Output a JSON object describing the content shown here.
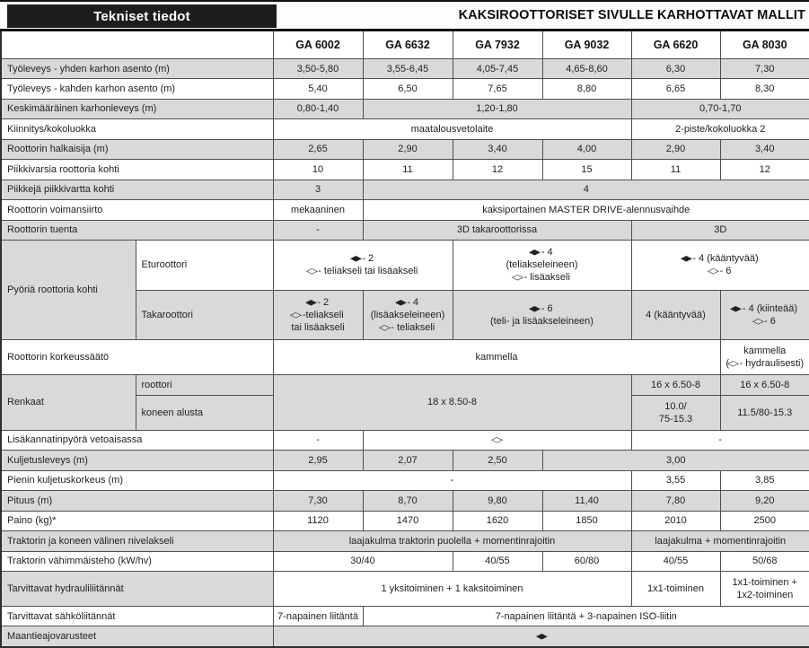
{
  "header": {
    "left_title": "Tekniset tiedot",
    "right_title": "KAKSIROOTTORISET SIVULLE KARHOTTAVAT MALLIT"
  },
  "colors": {
    "row_gray": "#d9d9d9",
    "row_white": "#ffffff",
    "header_box_bg": "#1d1d1d",
    "header_box_text": "#ffffff"
  },
  "legend_icons": {
    "filled_diamond": "◆",
    "outline_diamond": "◇"
  },
  "columns": [
    "GA 6002",
    "GA 6632",
    "GA 7932",
    "GA 9032",
    "GA 6620",
    "GA 8030"
  ],
  "rows": [
    {
      "label": "Työleveys - yhden karhon asento (m)",
      "shade": "g",
      "cells": [
        {
          "text": "3,50-5,80"
        },
        {
          "text": "3,55-6,45"
        },
        {
          "text": "4,05-7,45"
        },
        {
          "text": "4,65-8,60"
        },
        {
          "text": "6,30"
        },
        {
          "text": "7,30"
        }
      ]
    },
    {
      "label": "Työleveys - kahden karhon asento (m)",
      "shade": "w",
      "cells": [
        {
          "text": "5,40"
        },
        {
          "text": "6,50"
        },
        {
          "text": "7,65"
        },
        {
          "text": "8,80"
        },
        {
          "text": "6,65"
        },
        {
          "text": "8,30"
        }
      ]
    },
    {
      "label": "Keskimääräinen karhonleveys (m)",
      "shade": "g",
      "cells": [
        {
          "text": "0,80-1,40"
        },
        {
          "text": "1,20-1,80",
          "span": 3
        },
        {
          "text": "0,70-1,70",
          "span": 2
        }
      ]
    },
    {
      "label": "Kiinnitys/kokoluokka",
      "shade": "w",
      "cells": [
        {
          "text": "maatalousvetolaite",
          "span": 4
        },
        {
          "text": "2-piste/kokoluokka 2",
          "span": 2
        }
      ]
    },
    {
      "label": "Roottorin halkaisija (m)",
      "shade": "g",
      "cells": [
        {
          "text": "2,65"
        },
        {
          "text": "2,90"
        },
        {
          "text": "3,40"
        },
        {
          "text": "4,00"
        },
        {
          "text": "2,90"
        },
        {
          "text": "3,40"
        }
      ]
    },
    {
      "label": "Piikkivarsia roottoria kohti",
      "shade": "w",
      "cells": [
        {
          "text": "10"
        },
        {
          "text": "11"
        },
        {
          "text": "12"
        },
        {
          "text": "15"
        },
        {
          "text": "11"
        },
        {
          "text": "12"
        }
      ]
    },
    {
      "label": "Piikkejä piikkivartta kohti",
      "shade": "g",
      "cells": [
        {
          "text": "3"
        },
        {
          "text": "4",
          "span": 5
        }
      ]
    },
    {
      "label": "Roottorin voimansiirto",
      "shade": "w",
      "cells": [
        {
          "text": "mekaaninen"
        },
        {
          "text": "kaksiportainen MASTER DRIVE-alennusvaihde",
          "span": 5
        }
      ]
    },
    {
      "label": "Roottorin tuenta",
      "shade": "g",
      "cells": [
        {
          "text": "-"
        },
        {
          "text": "3D takaroottorissa",
          "span": 3
        },
        {
          "text": "3D",
          "span": 2
        }
      ]
    },
    {
      "group_label": "Pyöriä roottoria kohti",
      "group_rowspan": 2,
      "sublabel": "Eturoottori",
      "shade": "w",
      "cells": [
        {
          "text": "◆ - 2\n◇ - teliakseli tai lisäakseli",
          "span": 2
        },
        {
          "text": "◆ - 4\n(teliakseleineen)\n◇ - lisäakseli",
          "span": 2
        },
        {
          "text": "◆ - 4 (kääntyvää)\n◇ - 6",
          "span": 2
        }
      ]
    },
    {
      "sublabel": "Takaroottori",
      "in_group": true,
      "shade": "g",
      "cells": [
        {
          "text": "◆ - 2\n◇ -teliakseli\ntai lisäakseli"
        },
        {
          "text": "◆ - 4\n(lisäakseleineen)\n◇ - teliakseli"
        },
        {
          "text": "◆ - 6\n(teli- ja lisäakseleineen)",
          "span": 2
        },
        {
          "text": "4 (kääntyvää)"
        },
        {
          "text": "◆ - 4 (kiinteää)\n◇ - 6"
        }
      ]
    },
    {
      "label": "Roottorin korkeussäätö",
      "shade": "w",
      "cells": [
        {
          "text": "kammella",
          "span": 5
        },
        {
          "text": "kammella\n(◇ - hydraulisesti)"
        }
      ]
    },
    {
      "group_label": "Renkaat",
      "group_rowspan": 2,
      "sublabel": "roottori",
      "shade": "g",
      "cells": [
        {
          "text": "18 x 8.50-8",
          "span": 4,
          "rowspan": 2
        },
        {
          "text": "16 x 6.50-8"
        },
        {
          "text": "16 x 6.50-8"
        }
      ]
    },
    {
      "sublabel": "koneen alusta",
      "in_group": true,
      "shade": "g",
      "cells": [
        {
          "text": "10.0/\n75-15.3"
        },
        {
          "text": "11.5/80-15.3"
        }
      ]
    },
    {
      "label": "Lisäkannatinpyörä vetoaisassa",
      "shade": "w",
      "cells": [
        {
          "text": "-"
        },
        {
          "text": "◇",
          "span": 3
        },
        {
          "text": "-",
          "span": 2
        }
      ]
    },
    {
      "label": "Kuljetusleveys (m)",
      "shade": "g",
      "cells": [
        {
          "text": "2,95"
        },
        {
          "text": "2,07"
        },
        {
          "text": "2,50"
        },
        {
          "text": "3,00",
          "span": 3
        }
      ]
    },
    {
      "label": "Pienin kuljetuskorkeus (m)",
      "shade": "w",
      "cells": [
        {
          "text": "-",
          "span": 4
        },
        {
          "text": "3,55"
        },
        {
          "text": "3,85"
        }
      ]
    },
    {
      "label": "Pituus (m)",
      "shade": "g",
      "cells": [
        {
          "text": "7,30"
        },
        {
          "text": "8,70"
        },
        {
          "text": "9,80"
        },
        {
          "text": "11,40"
        },
        {
          "text": "7,80"
        },
        {
          "text": "9,20"
        }
      ]
    },
    {
      "label": "Paino (kg)*",
      "shade": "w",
      "cells": [
        {
          "text": "1120"
        },
        {
          "text": "1470"
        },
        {
          "text": "1620"
        },
        {
          "text": "1850"
        },
        {
          "text": "2010"
        },
        {
          "text": "2500"
        }
      ]
    },
    {
      "label": "Traktorin ja koneen välinen nivelakseli",
      "shade": "g",
      "cells": [
        {
          "text": "laajakulma traktorin puolella + momentinrajoitin",
          "span": 4
        },
        {
          "text": "laajakulma + momentinrajoitin",
          "span": 2
        }
      ]
    },
    {
      "label": "Traktorin vähimmäisteho (kW/hv)",
      "shade": "w",
      "cells": [
        {
          "text": "30/40",
          "span": 2
        },
        {
          "text": "40/55"
        },
        {
          "text": "60/80"
        },
        {
          "text": "40/55"
        },
        {
          "text": "50/68"
        }
      ]
    },
    {
      "label": "Tarvittavat hydrauliliitännät",
      "shade": "g",
      "cells": [
        {
          "text": "1 yksitoiminen + 1 kaksitoiminen",
          "span": 4,
          "shade": "w"
        },
        {
          "text": "1x1-toiminen",
          "shade": "w"
        },
        {
          "text": "1x1-toiminen +\n1x2-toiminen",
          "shade": "w"
        }
      ]
    },
    {
      "label": "Tarvittavat sähköliitännät",
      "shade": "w",
      "cells": [
        {
          "text": "7-napainen liitäntä"
        },
        {
          "text": "7-napainen liitäntä + 3-napainen ISO-liitin",
          "span": 5
        }
      ]
    },
    {
      "label": "Maantieajovarusteet",
      "shade": "g",
      "cells": [
        {
          "text": "◆",
          "span": 6
        }
      ]
    }
  ]
}
